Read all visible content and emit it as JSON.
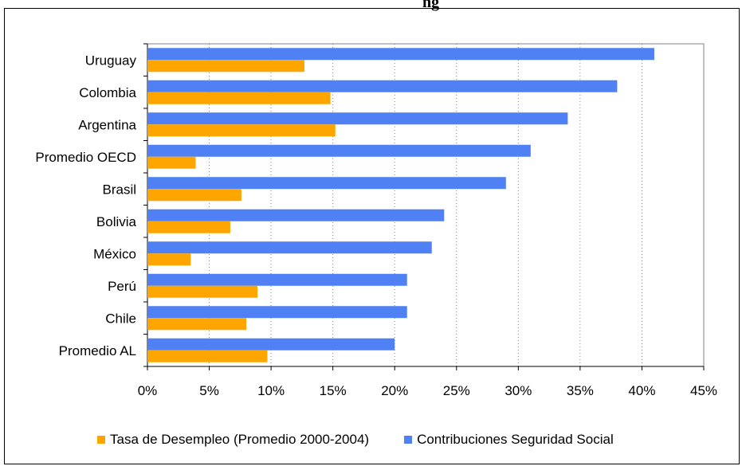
{
  "title_fragment": "ng",
  "chart_data": {
    "type": "bar",
    "orientation": "horizontal",
    "categories": [
      "Uruguay",
      "Colombia",
      "Argentina",
      "Promedio OECD",
      "Brasil",
      "Bolivia",
      "México",
      "Perú",
      "Chile",
      "Promedio AL"
    ],
    "series": [
      {
        "name": "Contribuciones Seguridad Social",
        "color": "#4F81F4",
        "values": [
          41,
          38,
          34,
          31,
          29,
          24,
          23,
          21,
          21,
          20
        ]
      },
      {
        "name": "Tasa de Desempleo (Promedio 2000-2004)",
        "color": "#FFA500",
        "values": [
          12.7,
          14.8,
          15.2,
          3.9,
          7.6,
          6.7,
          3.5,
          8.9,
          8.0,
          9.7
        ]
      }
    ],
    "xlim": [
      0,
      45
    ],
    "x_ticks": [
      "0%",
      "5%",
      "10%",
      "15%",
      "20%",
      "25%",
      "30%",
      "35%",
      "40%",
      "45%"
    ],
    "grid": "vertical-dotted",
    "legend_position": "bottom"
  }
}
